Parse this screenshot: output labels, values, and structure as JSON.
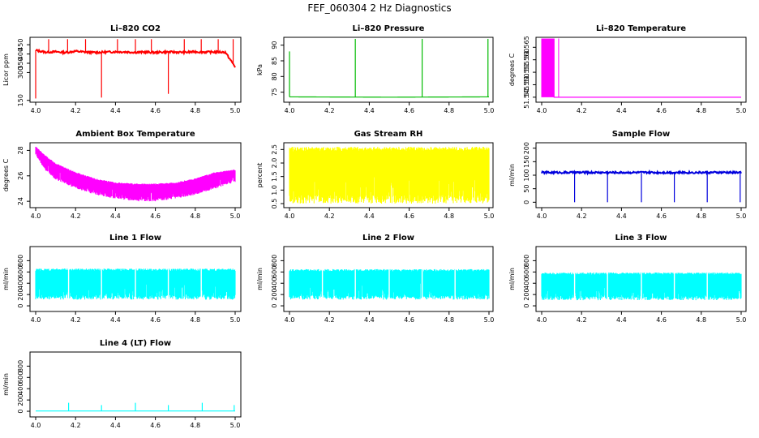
{
  "figure_title": "FEF_060304  2 Hz Diagnostics",
  "chart_data": [
    {
      "id": "co2",
      "type": "line",
      "title": "Li–820 CO2",
      "ylabel": "Licor ppm",
      "xlim": [
        4.0,
        5.0
      ],
      "ylim": [
        140,
        490
      ],
      "xticks": [
        4.0,
        4.2,
        4.4,
        4.6,
        4.8,
        5.0
      ],
      "xtick_labels": [
        "4.0",
        "4.2",
        "4.4",
        "4.6",
        "4.8",
        "5.0"
      ],
      "yticks": [
        150,
        300,
        350,
        400,
        450
      ],
      "ytick_labels": [
        "150",
        "300",
        "350",
        "400",
        "450"
      ],
      "color": "#ff0000",
      "series": [
        {
          "x": [
            4.0,
            4.05,
            4.1,
            4.15,
            4.2,
            4.25,
            4.3,
            4.35,
            4.4,
            4.45,
            4.5,
            4.55,
            4.6,
            4.65,
            4.7,
            4.75,
            4.8,
            4.85,
            4.9,
            4.95,
            5.0
          ],
          "values": [
            420,
            410,
            412,
            408,
            415,
            410,
            408,
            410,
            412,
            411,
            409,
            410,
            408,
            411,
            410,
            409,
            412,
            410,
            411,
            410,
            330
          ]
        }
      ],
      "spikes": [
        {
          "x": 4.0,
          "y": 160
        },
        {
          "x": 4.065,
          "y": 480
        },
        {
          "x": 4.16,
          "y": 480
        },
        {
          "x": 4.25,
          "y": 480
        },
        {
          "x": 4.33,
          "y": 165
        },
        {
          "x": 4.41,
          "y": 480
        },
        {
          "x": 4.5,
          "y": 480
        },
        {
          "x": 4.58,
          "y": 480
        },
        {
          "x": 4.665,
          "y": 185
        },
        {
          "x": 4.745,
          "y": 480
        },
        {
          "x": 4.83,
          "y": 480
        },
        {
          "x": 4.915,
          "y": 480
        },
        {
          "x": 4.99,
          "y": 480
        }
      ]
    },
    {
      "id": "pressure",
      "type": "line",
      "title": "Li–820 Pressure",
      "ylabel": "kPa",
      "xlim": [
        4.0,
        5.0
      ],
      "ylim": [
        71.8,
        92.5
      ],
      "xticks": [
        4.0,
        4.2,
        4.4,
        4.6,
        4.8,
        5.0
      ],
      "xtick_labels": [
        "4.0",
        "4.2",
        "4.4",
        "4.6",
        "4.8",
        "5.0"
      ],
      "yticks": [
        75,
        80,
        85,
        90
      ],
      "ytick_labels": [
        "75",
        "80",
        "85",
        "90"
      ],
      "color": "#00bb00",
      "series": [
        {
          "x": [
            4.0,
            4.5,
            5.0
          ],
          "values": [
            73.5,
            73.4,
            73.5
          ]
        }
      ],
      "spikes": [
        {
          "x": 4.0,
          "y": 88
        },
        {
          "x": 4.33,
          "y": 92
        },
        {
          "x": 4.665,
          "y": 92
        },
        {
          "x": 4.995,
          "y": 92
        }
      ]
    },
    {
      "id": "temperature",
      "type": "line",
      "title": "Li–820 Temperature",
      "ylabel": "degrees C",
      "xlim": [
        4.0,
        5.0
      ],
      "ylim": [
        51.543,
        51.569
      ],
      "xticks": [
        4.0,
        4.2,
        4.4,
        4.6,
        4.8,
        5.0
      ],
      "xtick_labels": [
        "4.0",
        "4.2",
        "4.4",
        "4.6",
        "4.8",
        "5.0"
      ],
      "yticks": [
        51.545,
        51.55,
        51.555,
        51.56,
        51.565
      ],
      "ytick_labels": [
        "51.545",
        "51.550",
        "51.555",
        "51.560",
        "51.565"
      ],
      "color": "#ff00ff",
      "series": [
        {
          "x": [
            4.0,
            4.1,
            5.0
          ],
          "values": [
            51.568,
            51.545,
            51.545
          ]
        }
      ]
    },
    {
      "id": "ambient",
      "type": "area",
      "title": "Ambient Box Temperature",
      "ylabel": "degrees C",
      "xlim": [
        4.0,
        5.0
      ],
      "ylim": [
        23.5,
        28.6
      ],
      "xticks": [
        4.0,
        4.2,
        4.4,
        4.6,
        4.8,
        5.0
      ],
      "xtick_labels": [
        "4.0",
        "4.2",
        "4.4",
        "4.6",
        "4.8",
        "5.0"
      ],
      "yticks": [
        24,
        26,
        28
      ],
      "ytick_labels": [
        "24",
        "26",
        "28"
      ],
      "color": "#ff00ff",
      "series": [
        {
          "x": [
            4.0,
            4.05,
            4.1,
            4.2,
            4.3,
            4.4,
            4.5,
            4.6,
            4.7,
            4.8,
            4.9,
            5.0
          ],
          "values": [
            28.3,
            27.6,
            27.0,
            26.3,
            25.8,
            25.5,
            25.4,
            25.4,
            25.5,
            25.8,
            26.3,
            26.5
          ]
        },
        {
          "x": [
            4.0,
            4.05,
            4.1,
            4.2,
            4.3,
            4.4,
            4.5,
            4.6,
            4.7,
            4.8,
            4.9,
            5.0
          ],
          "values": [
            27.6,
            26.4,
            25.7,
            25.0,
            24.5,
            24.2,
            24.0,
            24.0,
            24.2,
            24.5,
            25.0,
            25.5
          ]
        }
      ]
    },
    {
      "id": "rh",
      "type": "area",
      "title": "Gas Stream RH",
      "ylabel": "percent",
      "xlim": [
        4.0,
        5.0
      ],
      "ylim": [
        0.35,
        2.75
      ],
      "xticks": [
        4.0,
        4.2,
        4.4,
        4.6,
        4.8,
        5.0
      ],
      "xtick_labels": [
        "4.0",
        "4.2",
        "4.4",
        "4.6",
        "4.8",
        "5.0"
      ],
      "yticks": [
        0.5,
        1.0,
        1.5,
        2.0,
        2.5
      ],
      "ytick_labels": [
        "0.5",
        "1.0",
        "1.5",
        "2.0",
        "2.5"
      ],
      "color": "#ffff00",
      "series": [
        {
          "x": [
            4.0,
            5.0
          ],
          "values": [
            2.6,
            2.6
          ]
        },
        {
          "x": [
            4.0,
            5.0
          ],
          "values": [
            0.5,
            0.5
          ]
        }
      ]
    },
    {
      "id": "sample",
      "type": "line",
      "title": "Sample Flow",
      "ylabel": "ml/min",
      "xlim": [
        4.0,
        5.0
      ],
      "ylim": [
        -20,
        220
      ],
      "xticks": [
        4.0,
        4.2,
        4.4,
        4.6,
        4.8,
        5.0
      ],
      "xtick_labels": [
        "4.0",
        "4.2",
        "4.4",
        "4.6",
        "4.8",
        "5.0"
      ],
      "yticks": [
        0,
        50,
        100,
        150,
        200
      ],
      "ytick_labels": [
        "0",
        "50",
        "100",
        "150",
        "200"
      ],
      "color": "#0000dd",
      "series": [
        {
          "x": [
            4.0,
            5.0
          ],
          "values": [
            110,
            110
          ]
        }
      ],
      "dips": [
        4.165,
        4.33,
        4.5,
        4.665,
        4.83,
        4.995
      ],
      "dip_value": 0
    },
    {
      "id": "line1",
      "type": "area",
      "title": "Line 1 Flow",
      "ylabel": "ml/min",
      "xlim": [
        4.0,
        5.0
      ],
      "ylim": [
        -100,
        1050
      ],
      "xticks": [
        4.0,
        4.2,
        4.4,
        4.6,
        4.8,
        5.0
      ],
      "xtick_labels": [
        "4.0",
        "4.2",
        "4.4",
        "4.6",
        "4.8",
        "5.0"
      ],
      "yticks": [
        0,
        200,
        400,
        600,
        800
      ],
      "ytick_labels": [
        "0",
        "200",
        "400",
        "600",
        "800"
      ],
      "color": "#00ffff",
      "series": [
        {
          "x": [
            4.0,
            5.0
          ],
          "values": [
            660,
            660
          ]
        },
        {
          "x": [
            4.0,
            5.0
          ],
          "values": [
            110,
            110
          ]
        }
      ],
      "gaps": [
        4.165,
        4.33,
        4.5,
        4.665,
        4.83
      ]
    },
    {
      "id": "line2",
      "type": "area",
      "title": "Line 2 Flow",
      "ylabel": "ml/min",
      "xlim": [
        4.0,
        5.0
      ],
      "ylim": [
        -100,
        1050
      ],
      "xticks": [
        4.0,
        4.2,
        4.4,
        4.6,
        4.8,
        5.0
      ],
      "xtick_labels": [
        "4.0",
        "4.2",
        "4.4",
        "4.6",
        "4.8",
        "5.0"
      ],
      "yticks": [
        0,
        200,
        400,
        600,
        800
      ],
      "ytick_labels": [
        "0",
        "200",
        "400",
        "600",
        "800"
      ],
      "color": "#00ffff",
      "series": [
        {
          "x": [
            4.0,
            5.0
          ],
          "values": [
            650,
            650
          ]
        },
        {
          "x": [
            4.0,
            5.0
          ],
          "values": [
            110,
            110
          ]
        }
      ],
      "gaps": [
        4.165,
        4.33,
        4.5,
        4.665,
        4.83
      ]
    },
    {
      "id": "line3",
      "type": "area",
      "title": "Line 3 Flow",
      "ylabel": "ml/min",
      "xlim": [
        4.0,
        5.0
      ],
      "ylim": [
        -100,
        1050
      ],
      "xticks": [
        4.0,
        4.2,
        4.4,
        4.6,
        4.8,
        5.0
      ],
      "xtick_labels": [
        "4.0",
        "4.2",
        "4.4",
        "4.6",
        "4.8",
        "5.0"
      ],
      "yticks": [
        0,
        200,
        400,
        600,
        800
      ],
      "ytick_labels": [
        "0",
        "200",
        "400",
        "600",
        "800"
      ],
      "color": "#00ffff",
      "series": [
        {
          "x": [
            4.0,
            5.0
          ],
          "values": [
            590,
            590
          ]
        },
        {
          "x": [
            4.0,
            5.0
          ],
          "values": [
            100,
            100
          ]
        }
      ],
      "gaps": [
        4.165,
        4.33,
        4.5,
        4.665,
        4.83
      ]
    },
    {
      "id": "line4",
      "type": "line",
      "title": "Line 4 (LT) Flow",
      "ylabel": "ml/min",
      "xlim": [
        4.0,
        5.0
      ],
      "ylim": [
        -100,
        1050
      ],
      "xticks": [
        4.0,
        4.2,
        4.4,
        4.6,
        4.8,
        5.0
      ],
      "xtick_labels": [
        "4.0",
        "4.2",
        "4.4",
        "4.6",
        "4.8",
        "5.0"
      ],
      "yticks": [
        0,
        200,
        400,
        600,
        800
      ],
      "ytick_labels": [
        "0",
        "200",
        "400",
        "600",
        "800"
      ],
      "color": "#00ffff",
      "series": [
        {
          "x": [
            4.0,
            5.0
          ],
          "values": [
            5,
            5
          ]
        }
      ],
      "spikes": [
        {
          "x": 4.165,
          "y": 150
        },
        {
          "x": 4.33,
          "y": 110
        },
        {
          "x": 4.5,
          "y": 150
        },
        {
          "x": 4.665,
          "y": 110
        },
        {
          "x": 4.835,
          "y": 150
        },
        {
          "x": 4.995,
          "y": 110
        }
      ]
    }
  ]
}
